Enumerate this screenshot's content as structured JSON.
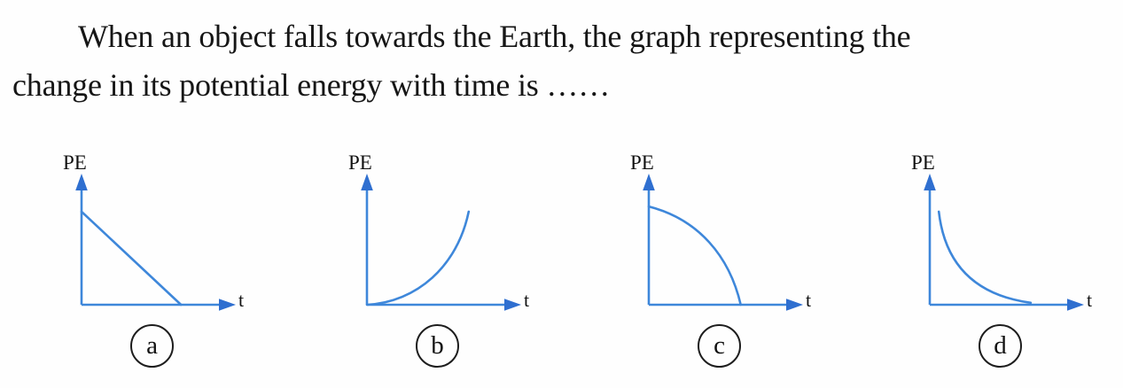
{
  "question": {
    "line1": "When an object falls towards the Earth, the graph representing the",
    "line2": "change in its potential energy with time is ……"
  },
  "colors": {
    "curve_blue": "#3E87DA",
    "arrow_blue": "#2F6FD0",
    "ink": "#161616"
  },
  "chart_data": [
    {
      "option": "a",
      "type": "line",
      "title": "Option (a)",
      "xlabel": "t",
      "ylabel": "PE",
      "x_range": [
        0,
        1
      ],
      "y_range": [
        0,
        1
      ],
      "grid": false,
      "trend": "PE decreases linearly with time, reaching zero",
      "curve": {
        "start": [
          0,
          0.73
        ],
        "end": [
          0.66,
          0
        ]
      }
    },
    {
      "option": "b",
      "type": "line",
      "title": "Option (b)",
      "xlabel": "t",
      "ylabel": "PE",
      "x_range": [
        0,
        1
      ],
      "y_range": [
        0,
        1
      ],
      "grid": false,
      "trend": "PE increases from zero at an increasing rate (concave up)",
      "curve": {
        "start": [
          0,
          0
        ],
        "c1": [
          0.33,
          0.02
        ],
        "c2": [
          0.6,
          0.3
        ],
        "end": [
          0.675,
          0.73
        ]
      }
    },
    {
      "option": "c",
      "type": "line",
      "title": "Option (c)",
      "xlabel": "t",
      "ylabel": "PE",
      "x_range": [
        0,
        1
      ],
      "y_range": [
        0,
        1
      ],
      "grid": false,
      "trend": "PE decreases at an increasing rate (concave down), dropping to zero",
      "curve": {
        "start": [
          0,
          0.77
        ],
        "c1": [
          0.33,
          0.67
        ],
        "c2": [
          0.535,
          0.38
        ],
        "end": [
          0.61,
          0
        ]
      }
    },
    {
      "option": "d",
      "type": "line",
      "title": "Option (d)",
      "xlabel": "t",
      "ylabel": "PE",
      "x_range": [
        0,
        1
      ],
      "y_range": [
        0,
        1
      ],
      "grid": false,
      "trend": "PE falls steeply at first then levels off toward zero (hyperbolic decay)",
      "curve": {
        "start": [
          0.06,
          0.73
        ],
        "c1": [
          0.1,
          0.315
        ],
        "c2": [
          0.3,
          0.075
        ],
        "end": [
          0.67,
          0.015
        ]
      }
    }
  ]
}
